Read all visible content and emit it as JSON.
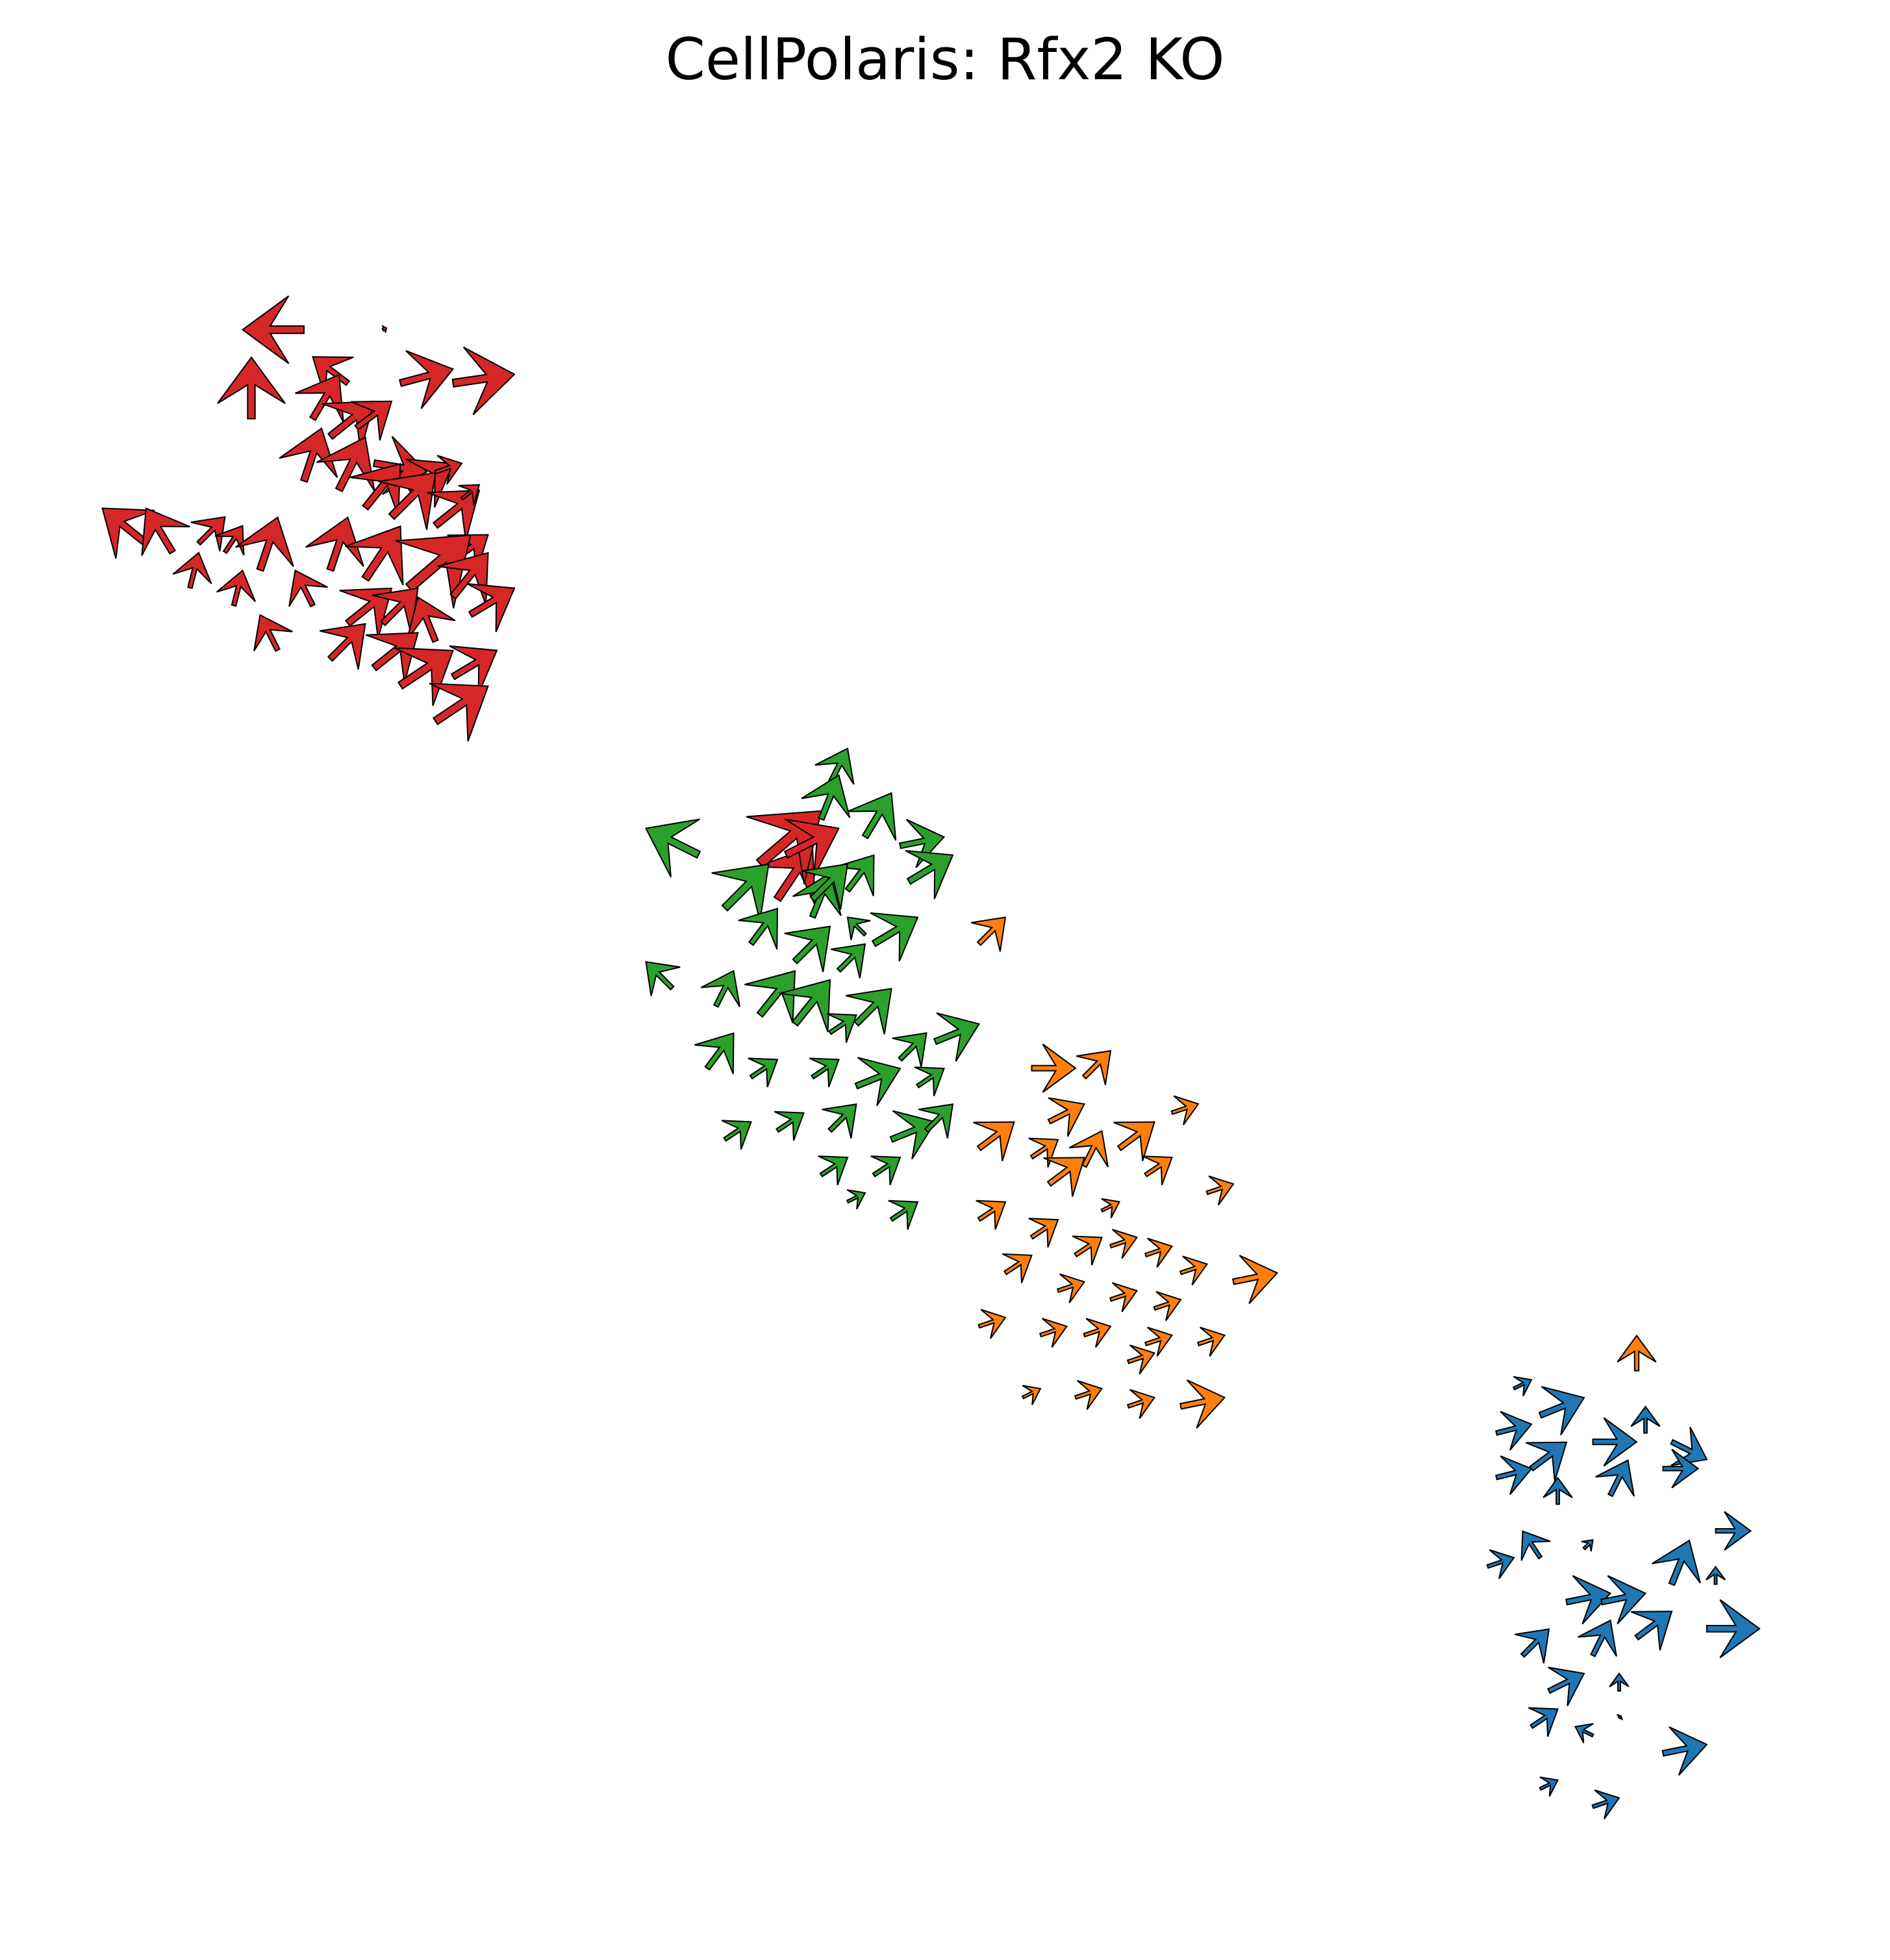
{
  "chart_data": {
    "type": "quiver",
    "title": "CellPolaris: Rfx2 KO",
    "xlabel": "",
    "ylabel": "",
    "axes_visible": false,
    "grid": false,
    "legend": "none",
    "xlim": [
      0,
      100
    ],
    "ylim": [
      0,
      100
    ],
    "colors": {
      "red": "#d62728",
      "green": "#2ca02c",
      "orange": "#ff7f0e",
      "blue": "#1f77b4"
    },
    "series": [
      {
        "color": "red",
        "points": [
          [
            14,
            89.5,
            -3.5,
            0.0
          ],
          [
            18.5,
            89.5,
            0.2,
            0.1
          ],
          [
            22.5,
            86.5,
            3.5,
            0.5
          ],
          [
            19.5,
            86.5,
            3.0,
            0.8
          ],
          [
            16.5,
            86.5,
            -2.0,
            1.5
          ],
          [
            11.0,
            84.5,
            0.0,
            3.5
          ],
          [
            14.5,
            84.5,
            1.5,
            2.5
          ],
          [
            15.5,
            83.5,
            2.5,
            2.0
          ],
          [
            17.0,
            84.0,
            2.0,
            1.5
          ],
          [
            18.0,
            82.0,
            3.0,
            -0.5
          ],
          [
            20.0,
            80.5,
            2.5,
            1.5
          ],
          [
            21.5,
            81.5,
            1.5,
            0.5
          ],
          [
            14.0,
            81.0,
            1.0,
            3.0
          ],
          [
            16.0,
            80.5,
            1.5,
            3.0
          ],
          [
            17.5,
            79.5,
            2.0,
            2.5
          ],
          [
            19.0,
            79.0,
            2.5,
            2.5
          ],
          [
            21.5,
            78.5,
            2.5,
            2.0
          ],
          [
            22.5,
            76.5,
            2.0,
            1.5
          ],
          [
            23.0,
            80.0,
            1.0,
            0.8
          ],
          [
            5.0,
            77.5,
            -2.5,
            2.0
          ],
          [
            6.5,
            77.0,
            -1.5,
            2.5
          ],
          [
            8.0,
            77.5,
            1.5,
            1.5
          ],
          [
            9.5,
            77.0,
            1.0,
            1.5
          ],
          [
            11.5,
            76.0,
            1.0,
            3.0
          ],
          [
            7.5,
            75.0,
            0.5,
            2.0
          ],
          [
            10.0,
            74.0,
            0.5,
            2.0
          ],
          [
            15.5,
            76.0,
            1.0,
            3.0
          ],
          [
            17.5,
            75.5,
            2.0,
            3.0
          ],
          [
            20.0,
            75.0,
            3.5,
            3.0
          ],
          [
            22.5,
            74.5,
            2.0,
            2.5
          ],
          [
            14.5,
            74.0,
            -1.0,
            2.0
          ],
          [
            16.5,
            73.0,
            2.5,
            2.0
          ],
          [
            18.5,
            73.0,
            2.0,
            2.0
          ],
          [
            21.5,
            72.0,
            -1.0,
            2.5
          ],
          [
            23.5,
            73.5,
            2.5,
            1.5
          ],
          [
            12.5,
            71.5,
            -1.0,
            2.0
          ],
          [
            15.5,
            71.0,
            2.0,
            2.0
          ],
          [
            18.0,
            70.5,
            2.5,
            2.0
          ],
          [
            19.5,
            69.5,
            3.0,
            2.0
          ],
          [
            22.5,
            70.0,
            2.5,
            1.5
          ],
          [
            21.5,
            67.5,
            3.0,
            2.0
          ],
          [
            41.0,
            57.5,
            2.0,
            3.0
          ],
          [
            40.0,
            59.5,
            3.5,
            3.0
          ],
          [
            41.5,
            60.0,
            3.0,
            1.5
          ]
        ]
      },
      {
        "color": "green",
        "points": [
          [
            44.0,
            64.0,
            1.0,
            2.0
          ],
          [
            43.5,
            62.0,
            1.0,
            2.5
          ],
          [
            46.0,
            61.0,
            1.5,
            2.5
          ],
          [
            48.0,
            60.5,
            2.5,
            0.5
          ],
          [
            48.5,
            58.5,
            2.5,
            1.5
          ],
          [
            45.0,
            58.0,
            1.5,
            2.0
          ],
          [
            46.0,
            55.5,
            -1.0,
            1.0
          ],
          [
            46.5,
            55.0,
            2.5,
            1.5
          ],
          [
            43.0,
            56.5,
            1.0,
            2.5
          ],
          [
            36.5,
            60.0,
            -3.0,
            1.5
          ],
          [
            38.0,
            57.0,
            2.5,
            2.5
          ],
          [
            43.0,
            57.5,
            2.0,
            2.0
          ],
          [
            39.5,
            55.0,
            1.5,
            2.0
          ],
          [
            42.0,
            54.0,
            2.0,
            2.0
          ],
          [
            44.5,
            53.5,
            1.5,
            1.5
          ],
          [
            35.0,
            52.5,
            -1.5,
            1.5
          ],
          [
            37.5,
            51.5,
            1.0,
            2.0
          ],
          [
            40.0,
            51.0,
            2.0,
            2.5
          ],
          [
            42.0,
            50.5,
            2.0,
            2.5
          ],
          [
            44.0,
            50.0,
            1.5,
            1.0
          ],
          [
            45.5,
            50.5,
            2.0,
            2.0
          ],
          [
            48.0,
            48.5,
            1.5,
            1.5
          ],
          [
            50.0,
            49.5,
            2.5,
            1.0
          ],
          [
            37.0,
            48.0,
            1.5,
            2.0
          ],
          [
            39.5,
            47.5,
            1.5,
            1.0
          ],
          [
            43.0,
            47.5,
            1.5,
            1.0
          ],
          [
            45.5,
            47.0,
            2.5,
            1.0
          ],
          [
            49.0,
            47.0,
            1.5,
            1.0
          ],
          [
            38.0,
            44.0,
            1.5,
            1.0
          ],
          [
            41.0,
            44.5,
            1.5,
            1.0
          ],
          [
            44.0,
            44.5,
            1.5,
            1.5
          ],
          [
            47.5,
            44.0,
            2.5,
            1.0
          ],
          [
            49.5,
            44.5,
            1.5,
            1.5
          ],
          [
            43.5,
            42.0,
            1.5,
            1.0
          ],
          [
            46.5,
            42.0,
            1.5,
            1.0
          ],
          [
            45.0,
            40.5,
            1.0,
            0.5
          ],
          [
            47.5,
            39.5,
            1.5,
            1.0
          ]
        ]
      },
      {
        "color": "orange",
        "points": [
          [
            52.5,
            55.0,
            1.5,
            1.5
          ],
          [
            55.5,
            48.0,
            2.5,
            0.0
          ],
          [
            58.5,
            47.5,
            1.5,
            1.5
          ],
          [
            63.5,
            45.5,
            1.5,
            0.5
          ],
          [
            56.5,
            45.0,
            2.0,
            1.0
          ],
          [
            52.5,
            43.5,
            2.0,
            1.5
          ],
          [
            55.5,
            43.0,
            1.5,
            1.0
          ],
          [
            58.5,
            42.5,
            1.0,
            2.0
          ],
          [
            60.5,
            43.5,
            2.0,
            1.5
          ],
          [
            56.5,
            41.5,
            2.0,
            1.5
          ],
          [
            59.5,
            40.0,
            1.0,
            0.5
          ],
          [
            62.0,
            42.0,
            1.5,
            1.0
          ],
          [
            65.5,
            41.0,
            1.5,
            0.5
          ],
          [
            52.5,
            39.5,
            1.5,
            1.0
          ],
          [
            55.5,
            38.5,
            1.5,
            1.0
          ],
          [
            58.0,
            37.5,
            1.5,
            1.0
          ],
          [
            60.0,
            38.0,
            1.5,
            0.5
          ],
          [
            62.0,
            37.5,
            1.5,
            0.5
          ],
          [
            64.0,
            36.5,
            1.5,
            0.5
          ],
          [
            67.0,
            36.0,
            2.5,
            0.5
          ],
          [
            54.0,
            36.5,
            1.5,
            1.0
          ],
          [
            57.0,
            35.5,
            1.5,
            0.5
          ],
          [
            60.0,
            35.0,
            1.5,
            0.5
          ],
          [
            62.5,
            34.5,
            1.5,
            0.5
          ],
          [
            52.5,
            33.5,
            1.5,
            0.5
          ],
          [
            56.0,
            33.0,
            1.5,
            0.5
          ],
          [
            58.5,
            33.0,
            1.5,
            0.5
          ],
          [
            62.0,
            32.5,
            1.5,
            0.5
          ],
          [
            65.0,
            32.5,
            1.5,
            0.5
          ],
          [
            61.0,
            31.5,
            1.5,
            0.5
          ],
          [
            55.0,
            29.5,
            1.0,
            0.5
          ],
          [
            58.0,
            29.5,
            1.5,
            0.5
          ],
          [
            61.0,
            29.0,
            1.5,
            0.5
          ],
          [
            64.0,
            29.0,
            2.5,
            0.5
          ],
          [
            90.0,
            31.0,
            0.0,
            2.0
          ]
        ]
      },
      {
        "color": "blue",
        "points": [
          [
            83.0,
            30.0,
            1.0,
            0.5
          ],
          [
            84.5,
            28.5,
            2.5,
            1.0
          ],
          [
            82.0,
            27.5,
            2.0,
            0.5
          ],
          [
            87.5,
            27.0,
            2.5,
            0.0
          ],
          [
            90.5,
            27.5,
            0.0,
            1.5
          ],
          [
            92.0,
            27.0,
            2.0,
            -1.0
          ],
          [
            84.0,
            25.5,
            2.0,
            1.5
          ],
          [
            82.0,
            25.0,
            2.0,
            0.5
          ],
          [
            91.5,
            25.5,
            2.0,
            0.0
          ],
          [
            88.5,
            24.0,
            1.0,
            2.0
          ],
          [
            85.5,
            23.5,
            0.0,
            1.5
          ],
          [
            84.5,
            20.5,
            -1.0,
            1.5
          ],
          [
            81.5,
            20.0,
            1.5,
            0.5
          ],
          [
            87.0,
            21.0,
            0.5,
            0.5
          ],
          [
            86.0,
            18.0,
            2.5,
            0.5
          ],
          [
            88.0,
            18.0,
            2.5,
            0.5
          ],
          [
            92.0,
            19.0,
            1.0,
            2.5
          ],
          [
            94.5,
            19.0,
            0.0,
            1.0
          ],
          [
            90.0,
            16.0,
            2.0,
            1.5
          ],
          [
            87.5,
            15.0,
            1.0,
            2.0
          ],
          [
            83.5,
            15.0,
            1.5,
            1.5
          ],
          [
            85.0,
            13.0,
            2.0,
            1.0
          ],
          [
            89.0,
            13.0,
            0.0,
            1.0
          ],
          [
            84.0,
            11.0,
            1.5,
            1.0
          ],
          [
            87.5,
            10.5,
            -1.0,
            0.5
          ],
          [
            91.5,
            9.5,
            2.5,
            0.5
          ],
          [
            84.5,
            7.5,
            1.0,
            0.5
          ],
          [
            87.5,
            6.5,
            1.5,
            0.5
          ],
          [
            94.0,
            16.5,
            3.0,
            0.0
          ],
          [
            94.5,
            22.0,
            2.0,
            0.0
          ],
          [
            89.0,
            11.5,
            0.1,
            0.1
          ]
        ]
      }
    ]
  }
}
